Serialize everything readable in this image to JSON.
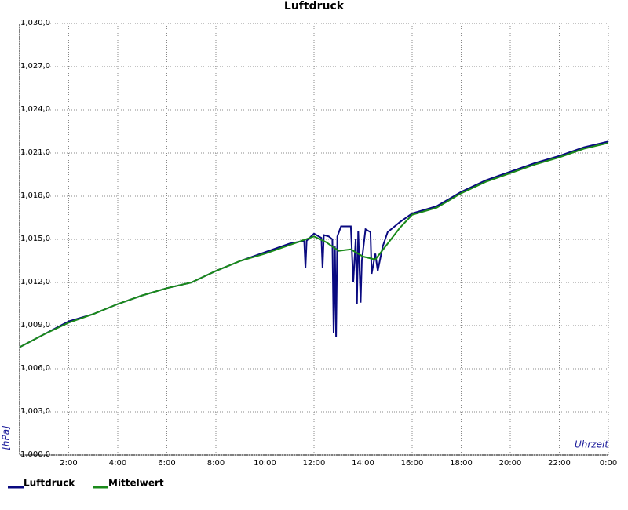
{
  "chart_data": {
    "type": "line",
    "title": "Luftdruck",
    "x_label": "Uhrzeit",
    "y_label": "[hPa]",
    "grid": true,
    "legend": "bottom-left",
    "xlim": [
      0,
      24
    ],
    "xticks": [
      0,
      {
        "value": 2,
        "label": "2:00"
      },
      {
        "value": 4,
        "label": "4:00"
      },
      {
        "value": 6,
        "label": "6:00"
      },
      {
        "value": 8,
        "label": "8:00"
      },
      {
        "value": 10,
        "label": "10:00"
      },
      {
        "value": 12,
        "label": "12:00"
      },
      {
        "value": 14,
        "label": "14:00"
      },
      {
        "value": 16,
        "label": "16:00"
      },
      {
        "value": 18,
        "label": "18:00"
      },
      {
        "value": 20,
        "label": "20:00"
      },
      {
        "value": 22,
        "label": "22:00"
      },
      {
        "value": 24,
        "label": "0:00"
      }
    ],
    "ylim": [
      1000,
      1030
    ],
    "yticks": [
      {
        "value": 1000,
        "label": "1,000,0"
      },
      {
        "value": 1003,
        "label": "1,003,0"
      },
      {
        "value": 1006,
        "label": "1,006,0"
      },
      {
        "value": 1009,
        "label": "1,009,0"
      },
      {
        "value": 1012,
        "label": "1,012,0"
      },
      {
        "value": 1015,
        "label": "1,015,0"
      },
      {
        "value": 1018,
        "label": "1,018,0"
      },
      {
        "value": 1021,
        "label": "1,021,0"
      },
      {
        "value": 1024,
        "label": "1,024,0"
      },
      {
        "value": 1027,
        "label": "1,027,0"
      },
      {
        "value": 1030,
        "label": "1,030,0"
      }
    ],
    "series": [
      {
        "name": "Luftdruck",
        "color": "#0a0a80",
        "x": [
          0,
          1,
          2,
          3,
          4,
          5,
          6,
          7,
          8,
          9,
          10,
          11,
          11.6,
          11.65,
          11.7,
          12,
          12.3,
          12.35,
          12.4,
          12.6,
          12.75,
          12.8,
          12.85,
          12.9,
          12.95,
          13.1,
          13.5,
          13.6,
          13.7,
          13.75,
          13.8,
          13.9,
          13.95,
          14.1,
          14.3,
          14.35,
          14.5,
          14.6,
          14.8,
          15,
          15.5,
          16,
          17,
          18,
          19,
          20,
          21,
          22,
          23,
          24
        ],
        "values": [
          1007.5,
          1008.4,
          1009.3,
          1009.8,
          1010.5,
          1011.1,
          1011.6,
          1012.0,
          1012.8,
          1013.5,
          1014.1,
          1014.7,
          1014.9,
          1013.0,
          1014.9,
          1015.4,
          1015.1,
          1013.0,
          1015.3,
          1015.2,
          1015.0,
          1008.5,
          1014.5,
          1008.2,
          1015.2,
          1015.9,
          1015.9,
          1012.0,
          1015.0,
          1010.5,
          1015.6,
          1010.6,
          1013.5,
          1015.7,
          1015.5,
          1012.6,
          1014.0,
          1012.8,
          1014.5,
          1015.5,
          1016.2,
          1016.8,
          1017.3,
          1018.3,
          1019.1,
          1019.7,
          1020.3,
          1020.8,
          1021.4,
          1021.8
        ]
      },
      {
        "name": "Mittelwert",
        "color": "#1a8a1a",
        "x": [
          0,
          1,
          2,
          3,
          4,
          5,
          6,
          7,
          8,
          9,
          10,
          11,
          12,
          12.5,
          13,
          13.5,
          14,
          14.5,
          15,
          15.5,
          16,
          17,
          18,
          19,
          20,
          21,
          22,
          23,
          24
        ],
        "values": [
          1007.5,
          1008.4,
          1009.2,
          1009.8,
          1010.5,
          1011.1,
          1011.6,
          1012.0,
          1012.8,
          1013.5,
          1014.0,
          1014.6,
          1015.2,
          1014.8,
          1014.2,
          1014.3,
          1013.8,
          1013.6,
          1014.7,
          1015.8,
          1016.7,
          1017.2,
          1018.2,
          1019.0,
          1019.6,
          1020.2,
          1020.7,
          1021.3,
          1021.7
        ]
      }
    ]
  }
}
